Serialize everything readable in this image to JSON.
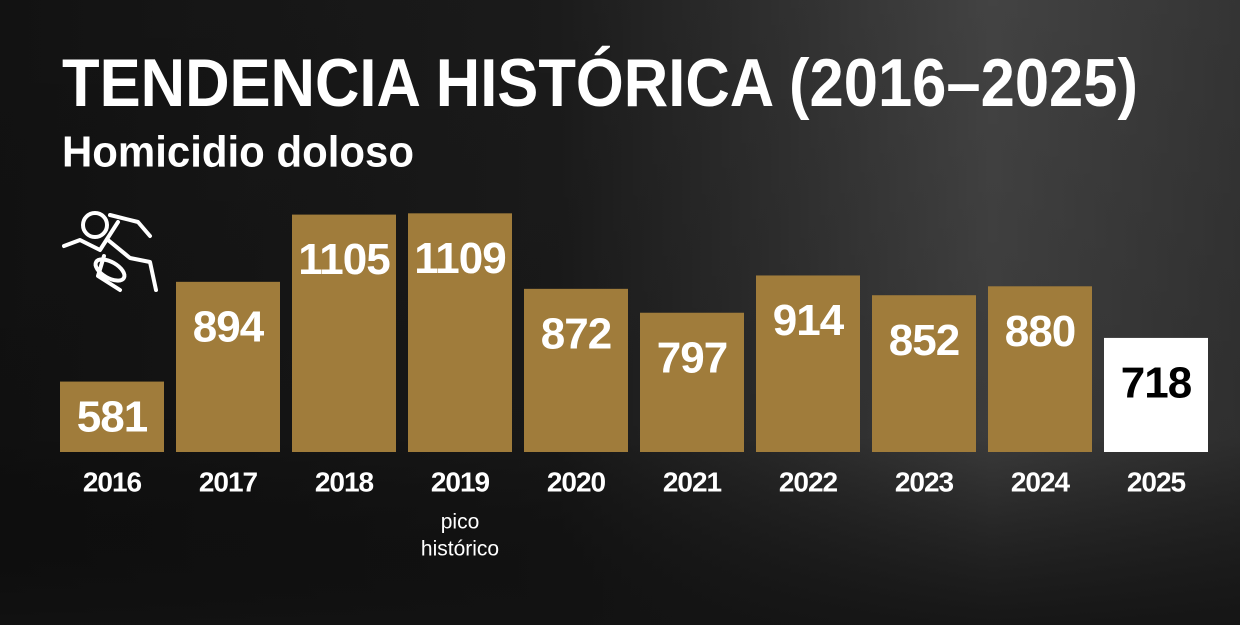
{
  "chart_data": {
    "type": "bar",
    "title": "TENDENCIA HISTÓRICA (2016–2025)",
    "subtitle": "Homicidio doloso",
    "categories": [
      "2016",
      "2017",
      "2018",
      "2019",
      "2020",
      "2021",
      "2022",
      "2023",
      "2024",
      "2025"
    ],
    "values": [
      581,
      894,
      1105,
      1109,
      872,
      797,
      914,
      852,
      880,
      718
    ],
    "colors": [
      "#a07c3b",
      "#a07c3b",
      "#a07c3b",
      "#a07c3b",
      "#a07c3b",
      "#a07c3b",
      "#a07c3b",
      "#a07c3b",
      "#a07c3b",
      "#ffffff"
    ],
    "label_colors": [
      "#ffffff",
      "#ffffff",
      "#ffffff",
      "#ffffff",
      "#ffffff",
      "#ffffff",
      "#ffffff",
      "#ffffff",
      "#ffffff",
      "#000000"
    ],
    "ylim": [
      360,
      1110
    ],
    "annotations": [
      {
        "x": "2019",
        "text": [
          "pico",
          "histórico"
        ]
      }
    ]
  }
}
